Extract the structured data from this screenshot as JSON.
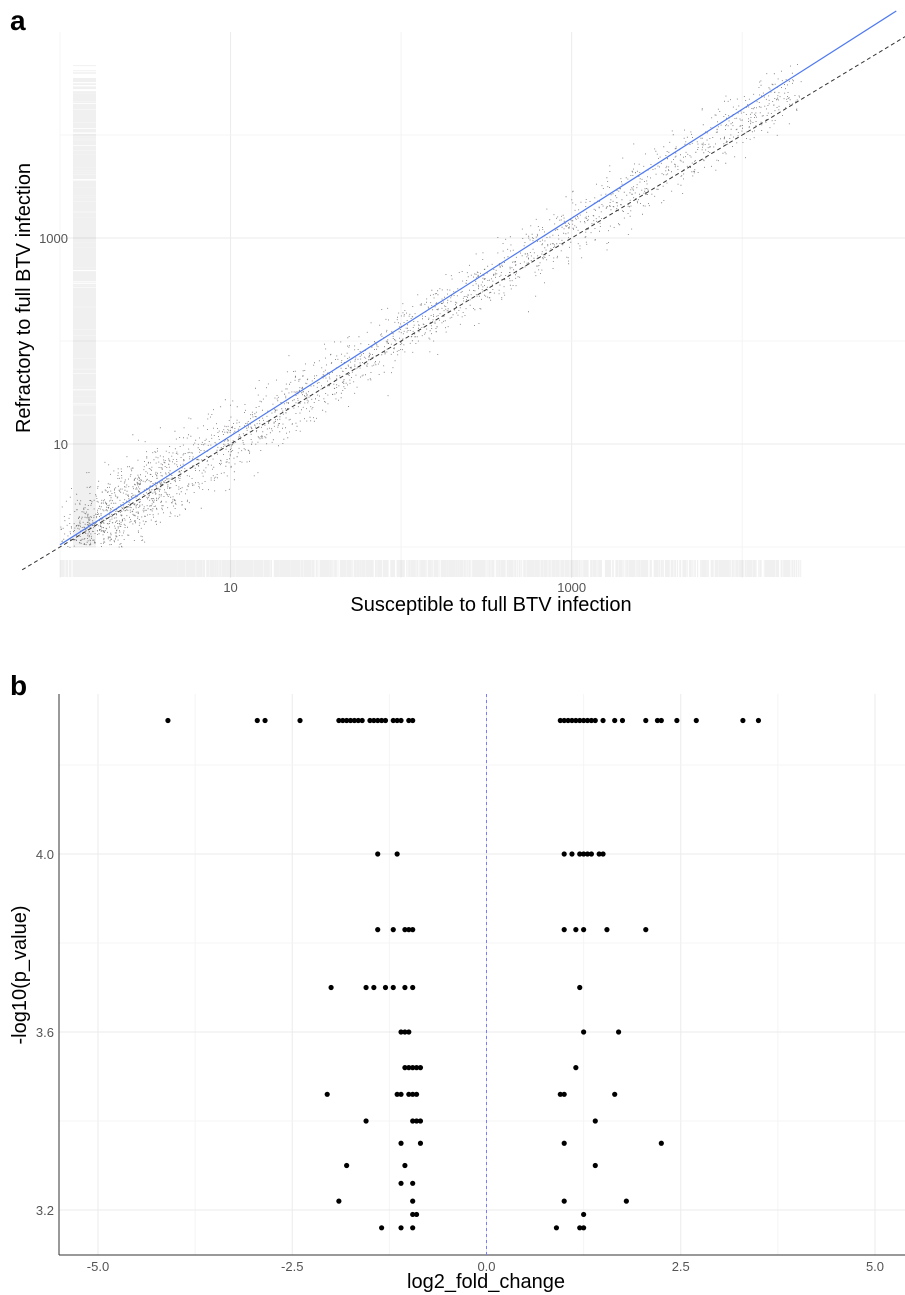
{
  "panel_a": {
    "letter": "a",
    "chart_data": {
      "type": "scatter",
      "title": "",
      "xlabel": "Susceptible to full BTV infection",
      "ylabel": "Refractory to full BTV infection",
      "x_scale": "log10",
      "y_scale": "log10",
      "xlim": [
        1,
        90000
      ],
      "ylim": [
        0.5,
        100000
      ],
      "x_tick_values": [
        10,
        1000
      ],
      "x_tick_labels": [
        "10",
        "1000"
      ],
      "y_tick_values": [
        10,
        1000
      ],
      "y_tick_labels": [
        "10",
        "1000"
      ],
      "grid": true,
      "legend": "none",
      "rug_plots": true,
      "reference_line": {
        "style": "dashed",
        "color": "#333333",
        "slope": 1,
        "intercept": 0
      },
      "fit_line": {
        "style": "solid",
        "color": "#4e79f0",
        "points": [
          [
            1,
            1.05
          ],
          [
            80000,
            160000
          ]
        ]
      },
      "point_color": "#000000",
      "point_count_approx": 15000
    }
  },
  "panel_b": {
    "letter": "b",
    "chart_data": {
      "type": "scatter",
      "title": "",
      "xlabel": "log2_fold_change",
      "ylabel": "-log10(p_value)",
      "xlim": [
        -5.0,
        5.0
      ],
      "ylim": [
        3.15,
        4.35
      ],
      "x_tick_labels": [
        "-5.0",
        "-2.5",
        "0.0",
        "2.5",
        "5.0"
      ],
      "x_tick_values": [
        -5.0,
        -2.5,
        0.0,
        2.5,
        5.0
      ],
      "y_tick_labels": [
        "3.2",
        "3.6",
        "4.0"
      ],
      "y_tick_values": [
        3.2,
        3.6,
        4.0
      ],
      "grid": true,
      "legend": "none",
      "vline": {
        "x": 0,
        "style": "dashed",
        "color": "#7b7bff"
      },
      "points": [
        {
          "x": -4.1,
          "y": 4.3
        },
        {
          "x": -2.95,
          "y": 4.3
        },
        {
          "x": -2.85,
          "y": 4.3
        },
        {
          "x": -2.4,
          "y": 4.3
        },
        {
          "x": -1.9,
          "y": 4.3
        },
        {
          "x": -1.85,
          "y": 4.3
        },
        {
          "x": -1.8,
          "y": 4.3
        },
        {
          "x": -1.75,
          "y": 4.3
        },
        {
          "x": -1.7,
          "y": 4.3
        },
        {
          "x": -1.65,
          "y": 4.3
        },
        {
          "x": -1.6,
          "y": 4.3
        },
        {
          "x": -1.5,
          "y": 4.3
        },
        {
          "x": -1.45,
          "y": 4.3
        },
        {
          "x": -1.4,
          "y": 4.3
        },
        {
          "x": -1.35,
          "y": 4.3
        },
        {
          "x": -1.3,
          "y": 4.3
        },
        {
          "x": -1.2,
          "y": 4.3
        },
        {
          "x": -1.15,
          "y": 4.3
        },
        {
          "x": -1.1,
          "y": 4.3
        },
        {
          "x": -1.0,
          "y": 4.3
        },
        {
          "x": -0.95,
          "y": 4.3
        },
        {
          "x": 0.95,
          "y": 4.3
        },
        {
          "x": 1.0,
          "y": 4.3
        },
        {
          "x": 1.05,
          "y": 4.3
        },
        {
          "x": 1.1,
          "y": 4.3
        },
        {
          "x": 1.15,
          "y": 4.3
        },
        {
          "x": 1.2,
          "y": 4.3
        },
        {
          "x": 1.25,
          "y": 4.3
        },
        {
          "x": 1.3,
          "y": 4.3
        },
        {
          "x": 1.35,
          "y": 4.3
        },
        {
          "x": 1.4,
          "y": 4.3
        },
        {
          "x": 1.5,
          "y": 4.3
        },
        {
          "x": 1.65,
          "y": 4.3
        },
        {
          "x": 1.75,
          "y": 4.3
        },
        {
          "x": 2.05,
          "y": 4.3
        },
        {
          "x": 2.2,
          "y": 4.3
        },
        {
          "x": 2.25,
          "y": 4.3
        },
        {
          "x": 2.45,
          "y": 4.3
        },
        {
          "x": 2.7,
          "y": 4.3
        },
        {
          "x": 3.3,
          "y": 4.3
        },
        {
          "x": 3.5,
          "y": 4.3
        },
        {
          "x": -1.4,
          "y": 4.0
        },
        {
          "x": -1.15,
          "y": 4.0
        },
        {
          "x": 1.0,
          "y": 4.0
        },
        {
          "x": 1.1,
          "y": 4.0
        },
        {
          "x": 1.2,
          "y": 4.0
        },
        {
          "x": 1.25,
          "y": 4.0
        },
        {
          "x": 1.3,
          "y": 4.0
        },
        {
          "x": 1.35,
          "y": 4.0
        },
        {
          "x": 1.45,
          "y": 4.0
        },
        {
          "x": 1.5,
          "y": 4.0
        },
        {
          "x": -1.4,
          "y": 3.83
        },
        {
          "x": -1.2,
          "y": 3.83
        },
        {
          "x": -1.05,
          "y": 3.83
        },
        {
          "x": -1.0,
          "y": 3.83
        },
        {
          "x": -0.95,
          "y": 3.83
        },
        {
          "x": 1.0,
          "y": 3.83
        },
        {
          "x": 1.15,
          "y": 3.83
        },
        {
          "x": 1.25,
          "y": 3.83
        },
        {
          "x": 1.55,
          "y": 3.83
        },
        {
          "x": 2.05,
          "y": 3.83
        },
        {
          "x": -2.0,
          "y": 3.7
        },
        {
          "x": -1.55,
          "y": 3.7
        },
        {
          "x": -1.45,
          "y": 3.7
        },
        {
          "x": -1.3,
          "y": 3.7
        },
        {
          "x": -1.2,
          "y": 3.7
        },
        {
          "x": -1.05,
          "y": 3.7
        },
        {
          "x": -0.95,
          "y": 3.7
        },
        {
          "x": 1.2,
          "y": 3.7
        },
        {
          "x": -1.1,
          "y": 3.6
        },
        {
          "x": -1.05,
          "y": 3.6
        },
        {
          "x": -1.0,
          "y": 3.6
        },
        {
          "x": 1.25,
          "y": 3.6
        },
        {
          "x": 1.7,
          "y": 3.6
        },
        {
          "x": -1.05,
          "y": 3.52
        },
        {
          "x": -1.0,
          "y": 3.52
        },
        {
          "x": -0.95,
          "y": 3.52
        },
        {
          "x": -0.9,
          "y": 3.52
        },
        {
          "x": -0.85,
          "y": 3.52
        },
        {
          "x": 1.15,
          "y": 3.52
        },
        {
          "x": -2.05,
          "y": 3.46
        },
        {
          "x": -1.15,
          "y": 3.46
        },
        {
          "x": -1.1,
          "y": 3.46
        },
        {
          "x": -1.0,
          "y": 3.46
        },
        {
          "x": -0.95,
          "y": 3.46
        },
        {
          "x": -0.9,
          "y": 3.46
        },
        {
          "x": 0.95,
          "y": 3.46
        },
        {
          "x": 1.0,
          "y": 3.46
        },
        {
          "x": 1.65,
          "y": 3.46
        },
        {
          "x": -1.55,
          "y": 3.4
        },
        {
          "x": -0.95,
          "y": 3.4
        },
        {
          "x": -0.9,
          "y": 3.4
        },
        {
          "x": -0.85,
          "y": 3.4
        },
        {
          "x": 1.4,
          "y": 3.4
        },
        {
          "x": -1.1,
          "y": 3.35
        },
        {
          "x": -0.85,
          "y": 3.35
        },
        {
          "x": 1.0,
          "y": 3.35
        },
        {
          "x": 2.25,
          "y": 3.35
        },
        {
          "x": -1.8,
          "y": 3.3
        },
        {
          "x": -1.05,
          "y": 3.3
        },
        {
          "x": 1.4,
          "y": 3.3
        },
        {
          "x": -1.1,
          "y": 3.26
        },
        {
          "x": -0.95,
          "y": 3.26
        },
        {
          "x": -1.9,
          "y": 3.22
        },
        {
          "x": -0.95,
          "y": 3.22
        },
        {
          "x": 1.0,
          "y": 3.22
        },
        {
          "x": 1.8,
          "y": 3.22
        },
        {
          "x": -0.95,
          "y": 3.19
        },
        {
          "x": -0.9,
          "y": 3.19
        },
        {
          "x": 1.25,
          "y": 3.19
        },
        {
          "x": -1.35,
          "y": 3.16
        },
        {
          "x": -1.1,
          "y": 3.16
        },
        {
          "x": -0.95,
          "y": 3.16
        },
        {
          "x": 0.9,
          "y": 3.16
        },
        {
          "x": 1.2,
          "y": 3.16
        },
        {
          "x": 1.25,
          "y": 3.16
        }
      ]
    }
  }
}
